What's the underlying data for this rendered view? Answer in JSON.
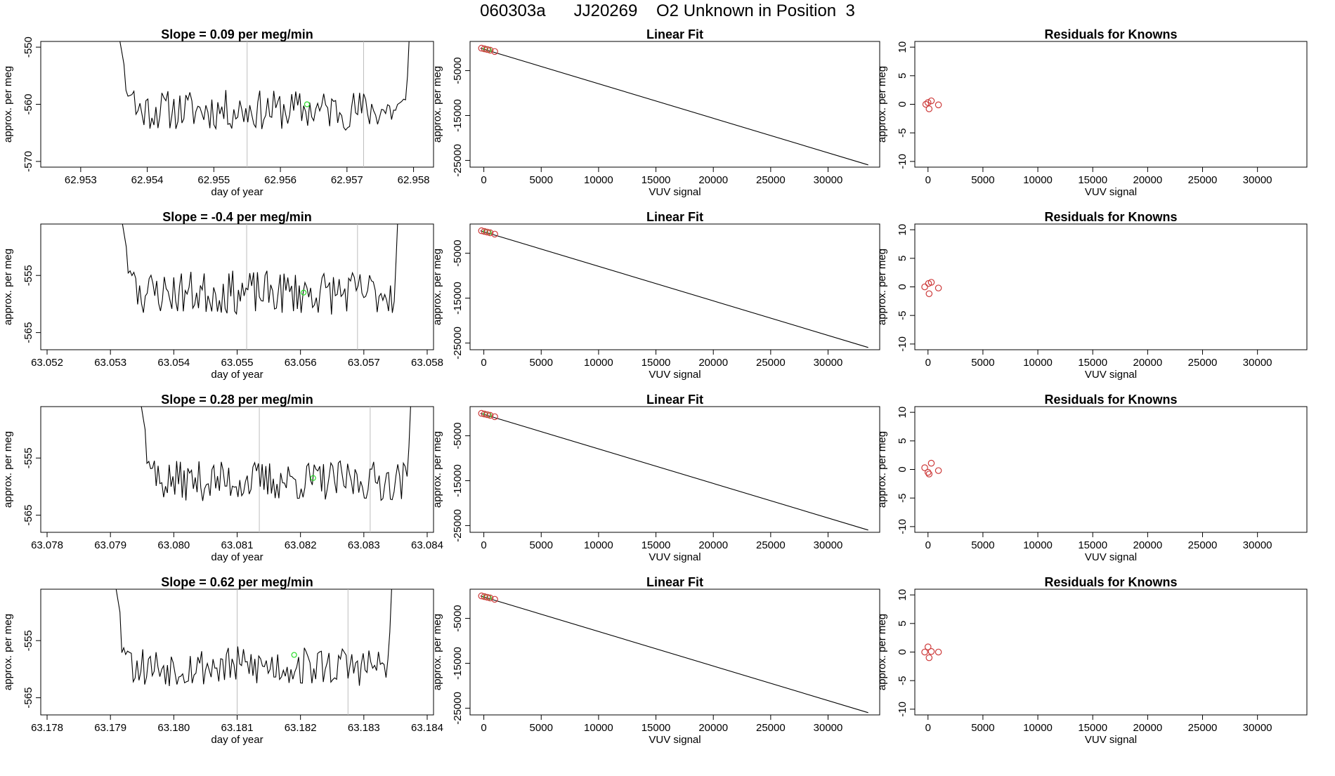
{
  "page_title": "060303a      JJ20269    O2 Unknown in Position  3",
  "colors": {
    "line": "#000000",
    "point_red": "#cd3b3b",
    "point_green": "#28dc28",
    "vline": "#bdbdbd"
  },
  "chart_data": [
    {
      "type": "line",
      "panel": "time-series",
      "row": 0,
      "title": "Slope =  0.09  per meg/min",
      "xlabel": "day of year",
      "ylabel": "approx. per meg",
      "xlim": [
        62.9524,
        62.9583
      ],
      "ylim": [
        -571,
        -549
      ],
      "xticks": [
        62.953,
        62.954,
        62.955,
        62.956,
        62.957,
        62.958
      ],
      "xtick_labels": [
        "62.953",
        "62.954",
        "62.955",
        "62.956",
        "62.957",
        "62.958"
      ],
      "yticks": [
        -550,
        -560,
        -570
      ],
      "ytick_labels": [
        "-550",
        "-560",
        "-570"
      ],
      "vlines": [
        62.9555,
        62.95725
      ],
      "series_range": [
        62.9535,
        62.958
      ],
      "baseline": -561,
      "noise": 2.2,
      "seed": 11,
      "green_point": [
        62.9564,
        -560
      ]
    },
    {
      "type": "line",
      "panel": "time-series",
      "row": 1,
      "title": "Slope =  -0.4  per meg/min",
      "xlabel": "day of year",
      "ylabel": "approx. per meg",
      "xlim": [
        63.0519,
        63.0581
      ],
      "ylim": [
        -568,
        -546
      ],
      "xticks": [
        63.052,
        63.053,
        63.054,
        63.055,
        63.056,
        63.057,
        63.058
      ],
      "xtick_labels": [
        "63.052",
        "63.053",
        "63.054",
        "63.055",
        "63.056",
        "63.057",
        "63.058"
      ],
      "yticks": [
        -555,
        -565
      ],
      "ytick_labels": [
        "-555",
        "-565"
      ],
      "vlines": [
        63.05515,
        63.0569
      ],
      "series_range": [
        63.0531,
        63.0576
      ],
      "baseline": -558,
      "noise": 2.4,
      "seed": 23,
      "green_point": [
        63.05605,
        -558
      ]
    },
    {
      "type": "line",
      "panel": "time-series",
      "row": 2,
      "title": "Slope =  0.28  per meg/min",
      "xlabel": "day of year",
      "ylabel": "approx. per meg",
      "xlim": [
        63.0779,
        63.0841
      ],
      "ylim": [
        -568,
        -546
      ],
      "xticks": [
        63.078,
        63.079,
        63.08,
        63.081,
        63.082,
        63.083,
        63.084
      ],
      "xtick_labels": [
        "63.078",
        "63.079",
        "63.080",
        "63.081",
        "63.082",
        "63.083",
        "63.084"
      ],
      "yticks": [
        -555,
        -565
      ],
      "ytick_labels": [
        "-555",
        "-565"
      ],
      "vlines": [
        63.08135,
        63.0831
      ],
      "series_range": [
        63.0794,
        63.0838
      ],
      "baseline": -559,
      "noise": 2.2,
      "seed": 37,
      "green_point": [
        63.0822,
        -558.5
      ]
    },
    {
      "type": "line",
      "panel": "time-series",
      "row": 3,
      "title": "Slope =  0.62  per meg/min",
      "xlabel": "day of year",
      "ylabel": "approx. per meg",
      "xlim": [
        63.1779,
        63.1841
      ],
      "ylim": [
        -568,
        -546
      ],
      "xticks": [
        63.178,
        63.179,
        63.18,
        63.181,
        63.182,
        63.183,
        63.184
      ],
      "xtick_labels": [
        "63.178",
        "63.179",
        "63.180",
        "63.181",
        "63.182",
        "63.183",
        "63.184"
      ],
      "yticks": [
        -555,
        -565
      ],
      "ytick_labels": [
        "-555",
        "-565"
      ],
      "vlines": [
        63.181,
        63.18275
      ],
      "series_range": [
        63.179,
        63.1835
      ],
      "baseline": -559.5,
      "noise": 2.2,
      "seed": 53,
      "green_point": [
        63.1819,
        -557.5
      ]
    },
    {
      "type": "scatter",
      "panel": "linear-fit",
      "row": 0,
      "title": "Linear Fit",
      "xlabel": "VUV signal",
      "ylabel": "approx. per meg",
      "xlim": [
        -1200,
        34500
      ],
      "ylim": [
        -26500,
        1500
      ],
      "xticks": [
        0,
        5000,
        10000,
        15000,
        20000,
        25000,
        30000
      ],
      "xtick_labels": [
        "0",
        "5000",
        "10000",
        "15000",
        "20000",
        "25000",
        "30000"
      ],
      "yticks": [
        -5000,
        -15000,
        -25000
      ],
      "ytick_labels": [
        "-5000",
        "-15000",
        "-25000"
      ],
      "fit_line": [
        [
          -300,
          0
        ],
        [
          33500,
          -26000
        ]
      ],
      "red_points": [
        [
          -200,
          0
        ],
        [
          50,
          -150
        ],
        [
          300,
          -300
        ],
        [
          550,
          -450
        ],
        [
          950,
          -750
        ]
      ],
      "green_points": [
        [
          150,
          -220
        ],
        [
          450,
          -380
        ]
      ]
    },
    {
      "type": "scatter",
      "panel": "linear-fit",
      "row": 1,
      "title": "Linear Fit",
      "xlabel": "VUV signal",
      "ylabel": "approx. per meg",
      "xlim": [
        -1200,
        34500
      ],
      "ylim": [
        -26500,
        1500
      ],
      "xticks": [
        0,
        5000,
        10000,
        15000,
        20000,
        25000,
        30000
      ],
      "xtick_labels": [
        "0",
        "5000",
        "10000",
        "15000",
        "20000",
        "25000",
        "30000"
      ],
      "yticks": [
        -5000,
        -15000,
        -25000
      ],
      "ytick_labels": [
        "-5000",
        "-15000",
        "-25000"
      ],
      "fit_line": [
        [
          -300,
          0
        ],
        [
          33500,
          -26000
        ]
      ],
      "red_points": [
        [
          -200,
          0
        ],
        [
          50,
          -150
        ],
        [
          300,
          -300
        ],
        [
          550,
          -450
        ],
        [
          950,
          -750
        ]
      ],
      "green_points": [
        [
          150,
          -220
        ],
        [
          450,
          -380
        ]
      ]
    },
    {
      "type": "scatter",
      "panel": "linear-fit",
      "row": 2,
      "title": "Linear Fit",
      "xlabel": "VUV signal",
      "ylabel": "approx. per meg",
      "xlim": [
        -1200,
        34500
      ],
      "ylim": [
        -26500,
        1500
      ],
      "xticks": [
        0,
        5000,
        10000,
        15000,
        20000,
        25000,
        30000
      ],
      "xtick_labels": [
        "0",
        "5000",
        "10000",
        "15000",
        "20000",
        "25000",
        "30000"
      ],
      "yticks": [
        -5000,
        -15000,
        -25000
      ],
      "ytick_labels": [
        "-5000",
        "-15000",
        "-25000"
      ],
      "fit_line": [
        [
          -300,
          0
        ],
        [
          33500,
          -26000
        ]
      ],
      "red_points": [
        [
          -200,
          0
        ],
        [
          50,
          -150
        ],
        [
          300,
          -300
        ],
        [
          550,
          -450
        ],
        [
          950,
          -750
        ]
      ],
      "green_points": [
        [
          150,
          -220
        ],
        [
          450,
          -380
        ]
      ]
    },
    {
      "type": "scatter",
      "panel": "linear-fit",
      "row": 3,
      "title": "Linear Fit",
      "xlabel": "VUV signal",
      "ylabel": "approx. per meg",
      "xlim": [
        -1200,
        34500
      ],
      "ylim": [
        -26500,
        1500
      ],
      "xticks": [
        0,
        5000,
        10000,
        15000,
        20000,
        25000,
        30000
      ],
      "xtick_labels": [
        "0",
        "5000",
        "10000",
        "15000",
        "20000",
        "25000",
        "30000"
      ],
      "yticks": [
        -5000,
        -15000,
        -25000
      ],
      "ytick_labels": [
        "-5000",
        "-15000",
        "-25000"
      ],
      "fit_line": [
        [
          -300,
          0
        ],
        [
          33500,
          -26000
        ]
      ],
      "red_points": [
        [
          -200,
          0
        ],
        [
          50,
          -150
        ],
        [
          300,
          -300
        ],
        [
          550,
          -450
        ],
        [
          950,
          -750
        ]
      ],
      "green_points": [
        [
          150,
          -220
        ],
        [
          450,
          -380
        ]
      ]
    },
    {
      "type": "scatter",
      "panel": "residuals",
      "row": 0,
      "title": "Residuals for Knowns",
      "xlabel": "VUV signal",
      "ylabel": "approx. per meg",
      "xlim": [
        -1200,
        34500
      ],
      "ylim": [
        -11,
        11
      ],
      "xticks": [
        0,
        5000,
        10000,
        15000,
        20000,
        25000,
        30000
      ],
      "xtick_labels": [
        "0",
        "5000",
        "10000",
        "15000",
        "20000",
        "25000",
        "30000"
      ],
      "yticks": [
        10,
        5,
        0,
        -5,
        -10
      ],
      "ytick_labels": [
        "10",
        "5",
        "0",
        "-5",
        "-10"
      ],
      "red_points": [
        [
          -200,
          0
        ],
        [
          0,
          0.3
        ],
        [
          100,
          -0.8
        ],
        [
          300,
          0.6
        ],
        [
          950,
          -0.1
        ]
      ]
    },
    {
      "type": "scatter",
      "panel": "residuals",
      "row": 1,
      "title": "Residuals for Knowns",
      "xlabel": "VUV signal",
      "ylabel": "approx. per meg",
      "xlim": [
        -1200,
        34500
      ],
      "ylim": [
        -11,
        11
      ],
      "xticks": [
        0,
        5000,
        10000,
        15000,
        20000,
        25000,
        30000
      ],
      "xtick_labels": [
        "0",
        "5000",
        "10000",
        "15000",
        "20000",
        "25000",
        "30000"
      ],
      "yticks": [
        10,
        5,
        0,
        -5,
        -10
      ],
      "ytick_labels": [
        "10",
        "5",
        "0",
        "-5",
        "-10"
      ],
      "red_points": [
        [
          -300,
          0
        ],
        [
          50,
          0.6
        ],
        [
          100,
          -1.2
        ],
        [
          300,
          0.8
        ],
        [
          950,
          -0.2
        ]
      ]
    },
    {
      "type": "scatter",
      "panel": "residuals",
      "row": 2,
      "title": "Residuals for Knowns",
      "xlabel": "VUV signal",
      "ylabel": "approx. per meg",
      "xlim": [
        -1200,
        34500
      ],
      "ylim": [
        -11,
        11
      ],
      "xticks": [
        0,
        5000,
        10000,
        15000,
        20000,
        25000,
        30000
      ],
      "xtick_labels": [
        "0",
        "5000",
        "10000",
        "15000",
        "20000",
        "25000",
        "30000"
      ],
      "yticks": [
        10,
        5,
        0,
        -5,
        -10
      ],
      "ytick_labels": [
        "10",
        "5",
        "0",
        "-5",
        "-10"
      ],
      "red_points": [
        [
          -300,
          0.3
        ],
        [
          0,
          -0.5
        ],
        [
          100,
          -0.8
        ],
        [
          300,
          1.1
        ],
        [
          950,
          -0.2
        ]
      ]
    },
    {
      "type": "scatter",
      "panel": "residuals",
      "row": 3,
      "title": "Residuals for Knowns",
      "xlabel": "VUV signal",
      "ylabel": "approx. per meg",
      "xlim": [
        -1200,
        34500
      ],
      "ylim": [
        -11,
        11
      ],
      "xticks": [
        0,
        5000,
        10000,
        15000,
        20000,
        25000,
        30000
      ],
      "xtick_labels": [
        "0",
        "5000",
        "10000",
        "15000",
        "20000",
        "25000",
        "30000"
      ],
      "yticks": [
        10,
        5,
        0,
        -5,
        -10
      ],
      "ytick_labels": [
        "10",
        "5",
        "0",
        "-5",
        "-10"
      ],
      "red_points": [
        [
          -300,
          0
        ],
        [
          0,
          0.9
        ],
        [
          100,
          -1.0
        ],
        [
          300,
          0.1
        ],
        [
          950,
          0
        ]
      ]
    }
  ]
}
